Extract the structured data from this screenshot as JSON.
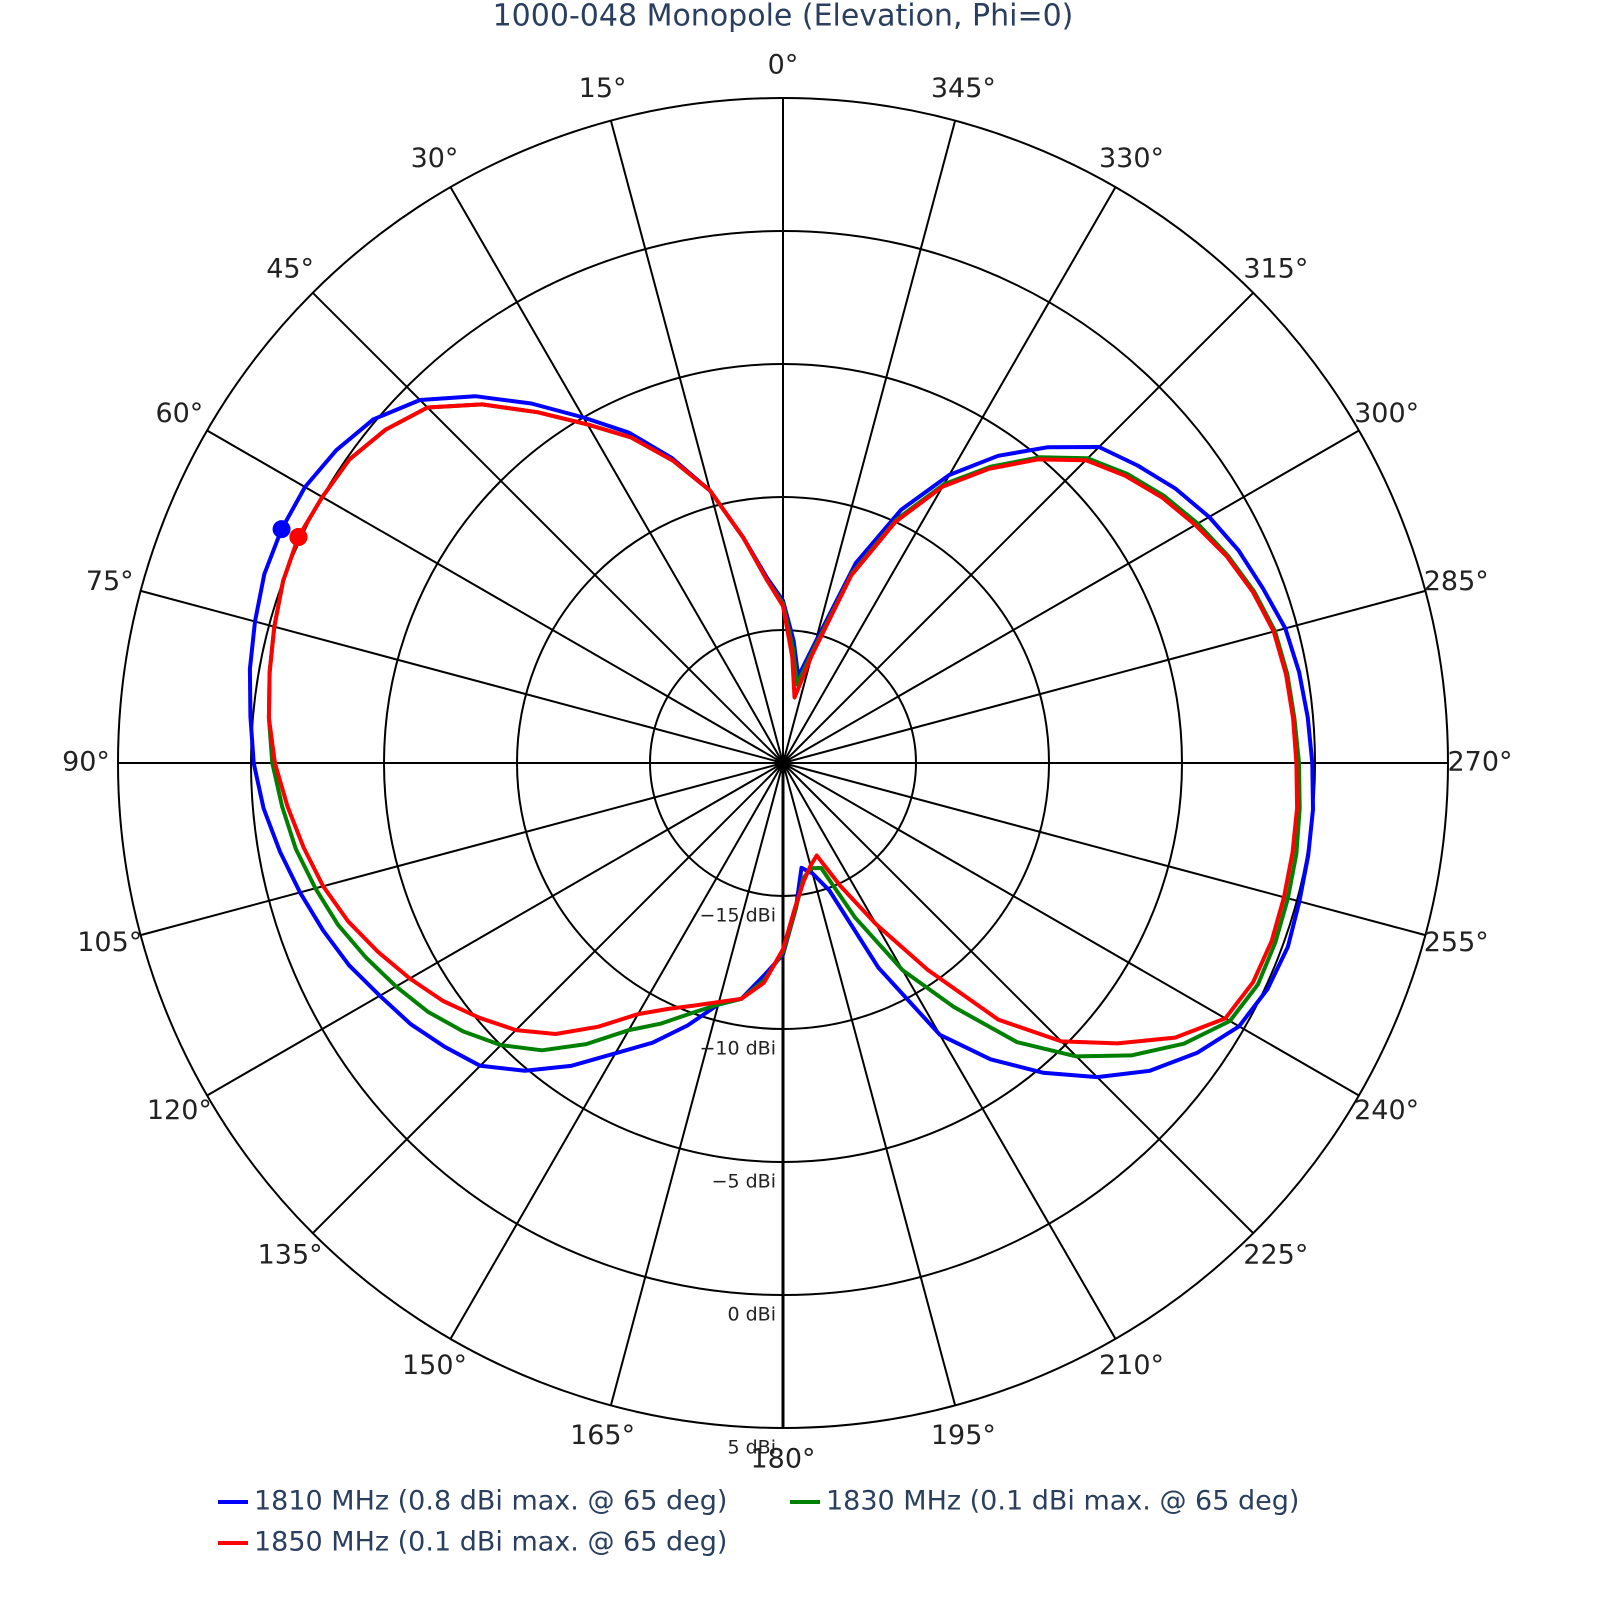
{
  "chart_data": {
    "type": "polar",
    "title": "1000-048 Monopole (Elevation, Phi=0)",
    "direction": "counterclockwise",
    "rotation": 90,
    "rlim": [
      -20,
      5
    ],
    "rticks": [
      {
        "value": -15,
        "label": "−15 dBi"
      },
      {
        "value": -10,
        "label": "−10 dBi"
      },
      {
        "value": -5,
        "label": "−5 dBi"
      },
      {
        "value": 0,
        "label": "0 dBi"
      },
      {
        "value": 5,
        "label": "5 dBi"
      }
    ],
    "thetaticks": [
      {
        "value": 0,
        "label": "0°"
      },
      {
        "value": 15,
        "label": "15°"
      },
      {
        "value": 30,
        "label": "30°"
      },
      {
        "value": 45,
        "label": "45°"
      },
      {
        "value": 60,
        "label": "60°"
      },
      {
        "value": 75,
        "label": "75°"
      },
      {
        "value": 90,
        "label": "90°"
      },
      {
        "value": 105,
        "label": "105°"
      },
      {
        "value": 120,
        "label": "120°"
      },
      {
        "value": 135,
        "label": "135°"
      },
      {
        "value": 150,
        "label": "150°"
      },
      {
        "value": 165,
        "label": "165°"
      },
      {
        "value": 180,
        "label": "180°"
      },
      {
        "value": 195,
        "label": "195°"
      },
      {
        "value": 210,
        "label": "210°"
      },
      {
        "value": 225,
        "label": "225°"
      },
      {
        "value": 240,
        "label": "240°"
      },
      {
        "value": 255,
        "label": "255°"
      },
      {
        "value": 270,
        "label": "270°"
      },
      {
        "value": 285,
        "label": "285°"
      },
      {
        "value": 300,
        "label": "300°"
      },
      {
        "value": 315,
        "label": "315°"
      },
      {
        "value": 330,
        "label": "330°"
      },
      {
        "value": 345,
        "label": "345°"
      }
    ],
    "grid": true,
    "legend": "bottom",
    "theta": [
      0,
      5,
      10,
      15,
      20,
      25,
      30,
      35,
      40,
      45,
      50,
      55,
      60,
      65,
      70,
      75,
      80,
      85,
      90,
      95,
      100,
      105,
      110,
      115,
      120,
      125,
      130,
      135,
      140,
      145,
      150,
      155,
      160,
      165,
      170,
      175,
      180,
      185,
      190,
      195,
      200,
      205,
      210,
      215,
      220,
      225,
      230,
      235,
      240,
      245,
      250,
      255,
      260,
      265,
      270,
      275,
      280,
      285,
      290,
      295,
      300,
      305,
      310,
      315,
      320,
      325,
      330,
      335,
      340,
      345,
      350,
      355
    ],
    "series": [
      {
        "name": "1810 MHz (0.8 dBi max. @ 65 deg)",
        "color": "#0000ff",
        "values": [
          -13.9,
          -13,
          -11.4,
          -9.4,
          -7.8,
          -6.3,
          -5.0,
          -3.5,
          -2.0,
          -0.7,
          0.1,
          0.5,
          0.75,
          0.8,
          0.75,
          0.55,
          0.35,
          0.1,
          -0.1,
          -0.4,
          -0.8,
          -1.2,
          -1.6,
          -2.0,
          -2.5,
          -2.9,
          -3.4,
          -3.9,
          -4.9,
          -6.1,
          -7.4,
          -8.4,
          -9.5,
          -10.6,
          -11.0,
          -12.0,
          -12.8,
          -14.5,
          -16.0,
          -15.7,
          -14.9,
          -11.5,
          -8.2,
          -6.4,
          -4.8,
          -3.3,
          -2.0,
          -1.0,
          -0.2,
          0.1,
          0.2,
          0.1,
          0.05,
          0,
          -0.1,
          -0.2,
          -0.3,
          -0.45,
          -0.8,
          -1.1,
          -1.5,
          -2.0,
          -2.6,
          -3.2,
          -4.5,
          -5.9,
          -7.5,
          -9.5,
          -12,
          -15.3,
          -16.7,
          -15.4
        ]
      },
      {
        "name": "1830 MHz (0.1 dBi max. @ 65 deg)",
        "color": "#008000",
        "values": [
          -14.0,
          -13.1,
          -11.4,
          -9.4,
          -7.9,
          -6.5,
          -5.3,
          -3.9,
          -2.4,
          -1.1,
          -0.5,
          -0.1,
          0.0,
          0.1,
          0.0,
          -0.2,
          -0.4,
          -0.6,
          -0.8,
          -1.1,
          -1.4,
          -1.8,
          -2.2,
          -2.7,
          -3.2,
          -3.7,
          -4.3,
          -5.0,
          -5.9,
          -7.1,
          -8.4,
          -9.2,
          -10.0,
          -10.6,
          -11.0,
          -11.8,
          -12.9,
          -14.5,
          -15.6,
          -15.9,
          -15.8,
          -13.6,
          -11.0,
          -8.8,
          -6.3,
          -4.4,
          -2.9,
          -1.6,
          -0.6,
          -0.3,
          -0.3,
          -0.35,
          -0.4,
          -0.5,
          -0.6,
          -0.7,
          -0.75,
          -0.85,
          -1.15,
          -1.55,
          -2.0,
          -2.5,
          -3.1,
          -3.8,
          -5.0,
          -6.4,
          -7.9,
          -9.9,
          -12.4,
          -15.6,
          -17.0,
          -15.7
        ]
      },
      {
        "name": "1850 MHz (0.1 dBi max. @ 65 deg)",
        "color": "#ff0000",
        "values": [
          -14.1,
          -13.1,
          -11.4,
          -9.4,
          -7.9,
          -6.5,
          -5.3,
          -3.9,
          -2.4,
          -1.1,
          -0.5,
          -0.1,
          0.0,
          0.1,
          0.0,
          -0.2,
          -0.4,
          -0.6,
          -0.9,
          -1.3,
          -1.7,
          -2.1,
          -2.6,
          -3.2,
          -3.8,
          -4.4,
          -5.1,
          -5.8,
          -6.7,
          -7.9,
          -9.1,
          -9.8,
          -10.3,
          -10.7,
          -11.0,
          -11.7,
          -13.0,
          -14.6,
          -15.5,
          -16.0,
          -16.3,
          -14.9,
          -13.0,
          -10.5,
          -7.4,
          -5.2,
          -3.6,
          -2.0,
          -0.8,
          -0.5,
          -0.45,
          -0.5,
          -0.55,
          -0.6,
          -0.7,
          -0.75,
          -0.8,
          -0.9,
          -1.2,
          -1.6,
          -2.1,
          -2.6,
          -3.2,
          -3.9,
          -5.1,
          -6.5,
          -8.0,
          -10,
          -12.5,
          -15.8,
          -17.5,
          -16.0
        ]
      }
    ],
    "peak_markers": [
      {
        "theta": 65,
        "r": 0.8,
        "color": "#0000ff"
      },
      {
        "theta": 65,
        "r": 0.1,
        "color": "#008000"
      },
      {
        "theta": 65,
        "r": 0.1,
        "color": "#ff0000"
      }
    ]
  }
}
